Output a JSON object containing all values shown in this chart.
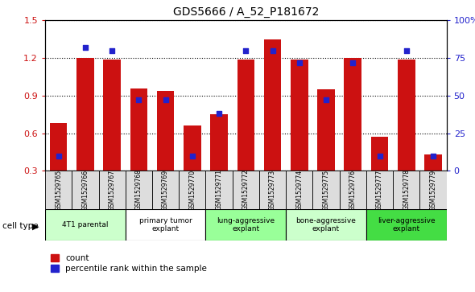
{
  "title": "GDS5666 / A_52_P181672",
  "samples": [
    "GSM1529765",
    "GSM1529766",
    "GSM1529767",
    "GSM1529768",
    "GSM1529769",
    "GSM1529770",
    "GSM1529771",
    "GSM1529772",
    "GSM1529773",
    "GSM1529774",
    "GSM1529775",
    "GSM1529776",
    "GSM1529777",
    "GSM1529778",
    "GSM1529779"
  ],
  "counts": [
    0.68,
    1.2,
    1.19,
    0.96,
    0.94,
    0.66,
    0.75,
    1.19,
    1.35,
    1.19,
    0.95,
    1.2,
    0.57,
    1.19,
    0.43
  ],
  "percentile_ranks": [
    10,
    82,
    80,
    47,
    47,
    10,
    38,
    80,
    80,
    72,
    47,
    72,
    10,
    80,
    10
  ],
  "ylim_left": [
    0.3,
    1.5
  ],
  "ylim_right": [
    0,
    100
  ],
  "yticks_left": [
    0.3,
    0.6,
    0.9,
    1.2,
    1.5
  ],
  "yticks_right": [
    0,
    25,
    50,
    75,
    100
  ],
  "bar_color": "#cc1111",
  "dot_color": "#2222cc",
  "cell_types": [
    {
      "label": "4T1 parental",
      "start": 0,
      "end": 3,
      "color": "#ccffcc"
    },
    {
      "label": "primary tumor\nexplant",
      "start": 3,
      "end": 6,
      "color": "#ffffff"
    },
    {
      "label": "lung-aggressive\nexplant",
      "start": 6,
      "end": 9,
      "color": "#99ff99"
    },
    {
      "label": "bone-aggressive\nexplant",
      "start": 9,
      "end": 12,
      "color": "#ccffcc"
    },
    {
      "label": "liver-aggressive\nexplant",
      "start": 12,
      "end": 15,
      "color": "#44dd44"
    }
  ],
  "legend_count_label": "count",
  "legend_pct_label": "percentile rank within the sample",
  "cell_type_label": "cell type",
  "bg_color": "#ffffff",
  "grid_color": "#000000",
  "spine_color": "#000000",
  "xtick_bg": "#dddddd",
  "title_fontsize": 10,
  "tick_fontsize": 8,
  "label_fontsize": 7,
  "legend_fontsize": 7.5
}
